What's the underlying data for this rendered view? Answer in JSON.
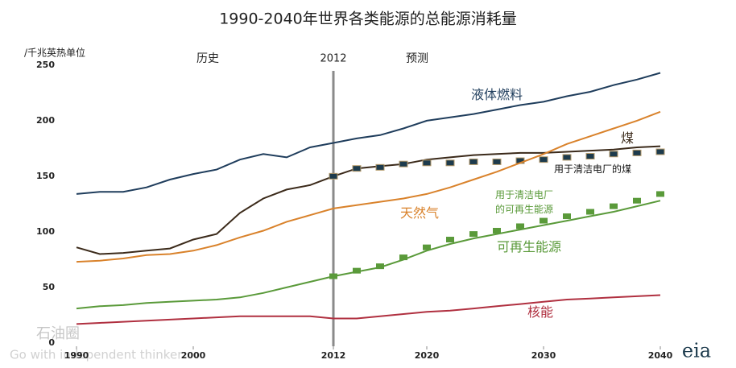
{
  "chart_data": {
    "type": "line",
    "title": "1990-2040年世界各类能源的总能源消耗量",
    "y_label": "/千兆英热单位",
    "x": [
      1990,
      1992,
      1994,
      1996,
      1998,
      2000,
      2002,
      2004,
      2006,
      2008,
      2010,
      2012,
      2014,
      2016,
      2018,
      2020,
      2022,
      2024,
      2026,
      2028,
      2030,
      2032,
      2034,
      2036,
      2038,
      2040
    ],
    "xlim": [
      1990,
      2040
    ],
    "xticks": [
      1990,
      2000,
      2012,
      2020,
      2030,
      2040
    ],
    "ylim": [
      0,
      250
    ],
    "yticks": [
      0,
      50,
      100,
      150,
      200,
      250
    ],
    "grid": false,
    "divider": {
      "x": 2012,
      "label": "2012"
    },
    "history_label": "历史",
    "projection_label": "预测",
    "logo": "eia",
    "watermark": {
      "name": "石油圈",
      "slogan": "Go with independent thinker"
    },
    "series": [
      {
        "name": "液体燃料",
        "color": "#1f3d5c",
        "style": "line",
        "values": [
          137,
          139,
          139,
          143,
          150,
          155,
          159,
          168,
          173,
          170,
          179,
          183,
          187,
          190,
          196,
          203,
          206,
          209,
          213,
          217,
          220,
          225,
          229,
          235,
          240,
          246
        ]
      },
      {
        "name": "煤",
        "color": "#3b2a1a",
        "style": "line",
        "values": [
          89,
          83,
          84,
          86,
          88,
          96,
          101,
          120,
          133,
          141,
          145,
          153,
          160,
          162,
          164,
          168,
          170,
          172,
          173,
          174,
          174,
          175,
          176,
          177,
          179,
          180
        ]
      },
      {
        "name": "用于清洁电厂的煤",
        "color": "#1d3b4d",
        "style": "markers",
        "values": [
          null,
          null,
          null,
          null,
          null,
          null,
          null,
          null,
          null,
          null,
          null,
          153,
          160,
          161,
          164,
          165,
          165,
          166,
          166,
          167,
          168,
          170,
          171,
          173,
          174,
          175
        ]
      },
      {
        "name": "天然气",
        "color": "#d9822b",
        "style": "line",
        "values": [
          76,
          77,
          79,
          82,
          83,
          86,
          91,
          98,
          104,
          112,
          118,
          124,
          127,
          130,
          133,
          137,
          143,
          150,
          157,
          165,
          173,
          182,
          189,
          196,
          203,
          211
        ]
      },
      {
        "name": "用于清洁电厂的可再生能源",
        "color": "#5a9a3a",
        "style": "markers",
        "values": [
          null,
          null,
          null,
          null,
          null,
          null,
          null,
          null,
          null,
          null,
          null,
          63,
          68,
          72,
          80,
          89,
          96,
          101,
          104,
          108,
          113,
          117,
          121,
          126,
          131,
          137
        ]
      },
      {
        "name": "可再生能源",
        "color": "#5a9a3a",
        "style": "line",
        "values": [
          34,
          36,
          37,
          39,
          40,
          41,
          42,
          44,
          48,
          53,
          58,
          63,
          67,
          71,
          78,
          86,
          92,
          97,
          101,
          105,
          109,
          113,
          117,
          121,
          126,
          131
        ]
      },
      {
        "name": "核能",
        "color": "#b03040",
        "style": "line",
        "values": [
          20,
          21,
          22,
          23,
          24,
          25,
          26,
          27,
          27,
          27,
          27,
          25,
          25,
          27,
          29,
          31,
          32,
          34,
          36,
          38,
          40,
          42,
          43,
          44,
          45,
          46
        ]
      }
    ]
  }
}
